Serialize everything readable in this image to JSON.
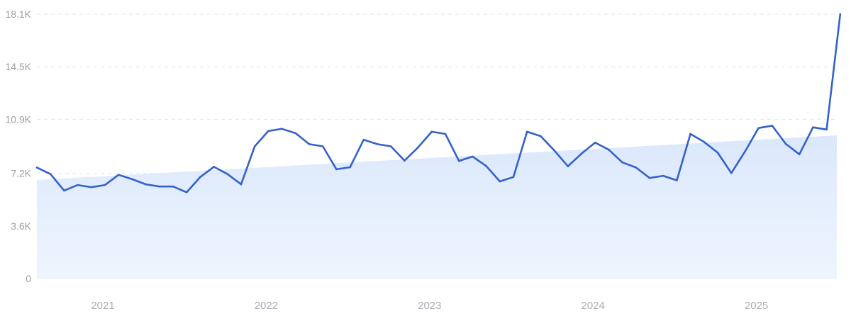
{
  "chart_data": {
    "type": "line",
    "x_start": "2020-09",
    "y_ticks": [
      {
        "value": 0,
        "label": "0"
      },
      {
        "value": 3600,
        "label": "3.6K"
      },
      {
        "value": 7200,
        "label": "7.2K"
      },
      {
        "value": 10900,
        "label": "10.9K"
      },
      {
        "value": 14500,
        "label": "14.5K"
      },
      {
        "value": 18100,
        "label": "18.1K"
      }
    ],
    "x_ticks": [
      {
        "date": "2021-02",
        "label": "2021"
      },
      {
        "date": "2022-02",
        "label": "2022"
      },
      {
        "date": "2023-02",
        "label": "2023"
      },
      {
        "date": "2024-02",
        "label": "2024"
      },
      {
        "date": "2025-02",
        "label": "2025"
      }
    ],
    "ylim": [
      0,
      18100
    ],
    "grid": true,
    "series": [
      {
        "color": "#3561cc",
        "x": [
          "2020-09",
          "2020-10",
          "2020-11",
          "2020-12",
          "2021-01",
          "2021-02",
          "2021-03",
          "2021-04",
          "2021-05",
          "2021-06",
          "2021-07",
          "2021-08",
          "2021-09",
          "2021-10",
          "2021-11",
          "2021-12",
          "2022-01",
          "2022-02",
          "2022-03",
          "2022-04",
          "2022-05",
          "2022-06",
          "2022-07",
          "2022-08",
          "2022-09",
          "2022-10",
          "2022-11",
          "2022-12",
          "2023-01",
          "2023-02",
          "2023-03",
          "2023-04",
          "2023-05",
          "2023-06",
          "2023-07",
          "2023-08",
          "2023-09",
          "2023-10",
          "2023-11",
          "2023-12",
          "2024-01",
          "2024-02",
          "2024-03",
          "2024-04",
          "2024-05",
          "2024-06",
          "2024-07",
          "2024-08",
          "2024-09",
          "2024-10",
          "2024-11",
          "2024-12",
          "2025-01",
          "2025-02",
          "2025-03",
          "2025-04",
          "2025-05",
          "2025-06",
          "2025-07",
          "2025-08"
        ],
        "values": [
          7600,
          7150,
          6020,
          6400,
          6250,
          6400,
          7100,
          6800,
          6450,
          6300,
          6300,
          5900,
          6950,
          7650,
          7150,
          6450,
          9050,
          10100,
          10250,
          9950,
          9200,
          9050,
          7480,
          7620,
          9500,
          9200,
          9050,
          8070,
          8980,
          10050,
          9900,
          8050,
          8350,
          7700,
          6650,
          6950,
          10050,
          9750,
          8770,
          7680,
          8550,
          9300,
          8820,
          7950,
          7600,
          6880,
          7030,
          6720,
          9900,
          9350,
          8620,
          7220,
          8680,
          10300,
          10460,
          9220,
          8500,
          10350,
          10200,
          18100
        ]
      }
    ],
    "trend": {
      "color": "#dce9fb",
      "start": {
        "date": "2020-09",
        "value": 6750
      },
      "end": {
        "date": "2025-09",
        "value": 9800
      }
    }
  }
}
